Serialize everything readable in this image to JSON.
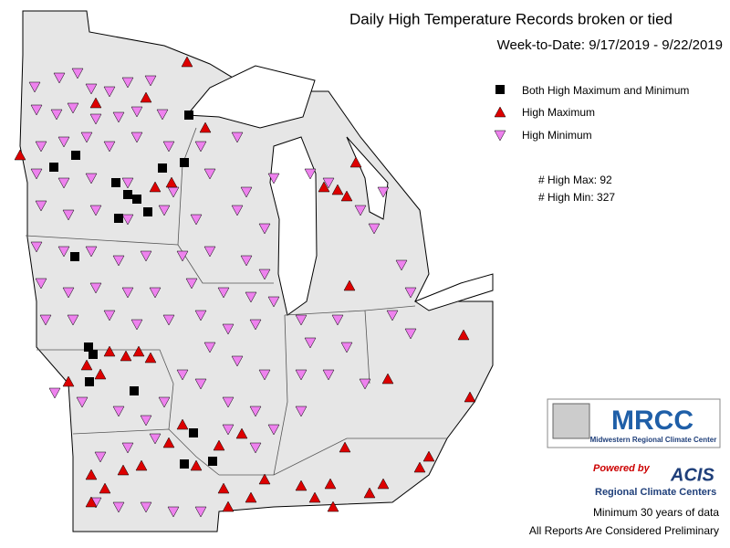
{
  "header": {
    "title": "Daily High Temperature Records broken or tied",
    "subtitle": "Week-to-Date:  9/17/2019 - 9/22/2019"
  },
  "legend": [
    "Both High Maximum and Minimum",
    "High Maximum",
    "High Minimum"
  ],
  "stats": [
    {
      "label": "# High Max:",
      "value": 92
    },
    {
      "label": "# High Min:",
      "value": 327
    }
  ],
  "logos": {
    "mrcc": "MRCC",
    "mrcc_name": "Midwestern Regional Climate Center",
    "powered": "Powered by",
    "acis": "ACIS",
    "acis_name": "Regional Climate Centers"
  },
  "footer": [
    "Minimum 30 years of data",
    "All Reports Are Considered Preliminary"
  ]
}
